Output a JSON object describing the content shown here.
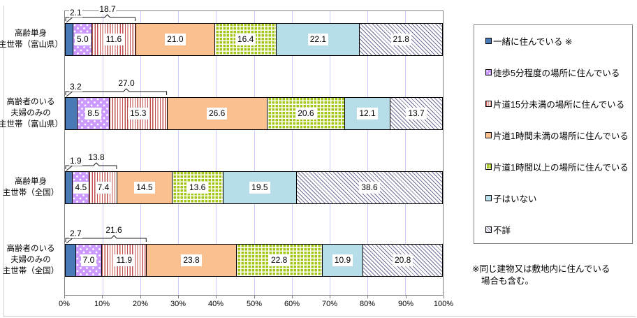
{
  "colors": {
    "together_blue": "#4a7ab5",
    "walk5_purple": "#cc99ff",
    "min15_red": "#c0504d",
    "hour1_orange": "#fbc08f",
    "hour1plus_green": "#a2c616",
    "nochild_lightblue": "#b7dee8",
    "unknown_hatch_line": "#70709a",
    "gridline": "#ccccff",
    "axis_gray": "#808080",
    "bar_border": "#000000"
  },
  "chart_data": {
    "type": "bar",
    "stacked": true,
    "orientation": "horizontal",
    "unit": "%",
    "xlim": [
      0,
      100
    ],
    "grid": "vertical-10pct",
    "legend_position": "right-box",
    "x_ticks": [
      "0%",
      "10%",
      "20%",
      "30%",
      "40%",
      "50%",
      "60%",
      "70%",
      "80%",
      "90%",
      "100%"
    ],
    "series": [
      {
        "name": "一緒に住んでいる ※",
        "pattern": "solid-blue"
      },
      {
        "name": "徒歩5分程度の場所に住んでいる",
        "pattern": "purple-dots"
      },
      {
        "name": "片道15分未満の場所に住んでいる",
        "pattern": "red-vertical-stripes"
      },
      {
        "name": "片道1時間未満の場所に住んでいる",
        "pattern": "solid-orange"
      },
      {
        "name": "片道1時間以上の場所に住んでいる",
        "pattern": "green-check"
      },
      {
        "name": "子はいない",
        "pattern": "solid-lightblue"
      },
      {
        "name": "不詳",
        "pattern": "diagonal-hatch"
      }
    ],
    "categories": [
      {
        "label_lines": [
          "高齢単身",
          "主世帯（富山県）"
        ],
        "values": [
          2.1,
          5.0,
          11.6,
          21.0,
          16.4,
          22.1,
          21.8
        ],
        "first_value_label": "2.1",
        "bracket_label": "18.7",
        "bracket_span_pct": 18.7
      },
      {
        "label_lines": [
          "高齢者のいる",
          "夫婦のみの",
          "主世帯（富山県）"
        ],
        "values": [
          3.2,
          8.5,
          15.3,
          26.6,
          20.6,
          12.1,
          13.7
        ],
        "first_value_label": "3.2",
        "bracket_label": "27.0",
        "bracket_span_pct": 27.0
      },
      {
        "label_lines": [
          "高齢単身",
          "主世帯（全国）"
        ],
        "values": [
          1.9,
          4.5,
          7.4,
          14.5,
          13.6,
          19.5,
          38.6
        ],
        "first_value_label": "1.9",
        "bracket_label": "13.8",
        "bracket_span_pct": 13.8
      },
      {
        "label_lines": [
          "高齢者のいる",
          "夫婦のみの",
          "主世帯（全国）"
        ],
        "values": [
          2.7,
          7.0,
          11.9,
          23.8,
          22.8,
          10.9,
          20.8
        ],
        "first_value_label": "2.7",
        "bracket_label": "21.6",
        "bracket_span_pct": 21.6
      }
    ]
  },
  "footnote": {
    "line1": "※同じ建物又は敷地内に住んでいる",
    "line2": "場合も含む。"
  }
}
